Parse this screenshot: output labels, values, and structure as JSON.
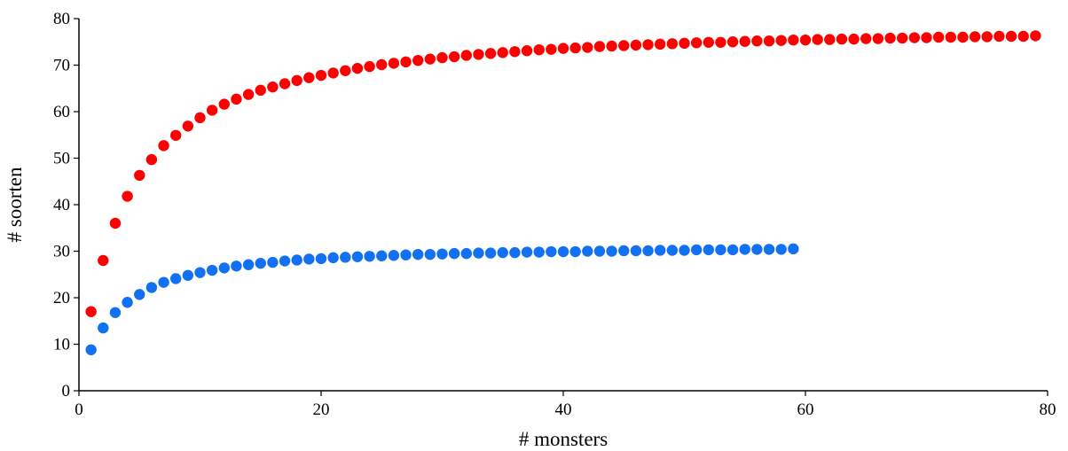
{
  "chart_data": {
    "type": "scatter",
    "title": "",
    "xlabel": "# monsters",
    "ylabel": "# soorten",
    "xlim": [
      0,
      80
    ],
    "ylim": [
      0,
      80
    ],
    "xticks": [
      0,
      20,
      40,
      60,
      80
    ],
    "yticks": [
      0,
      10,
      20,
      30,
      40,
      50,
      60,
      70,
      80
    ],
    "grid": false,
    "legend": "none",
    "series": [
      {
        "color": "#ff0000",
        "x": [
          1,
          2,
          3,
          4,
          5,
          6,
          7,
          8,
          9,
          10,
          11,
          12,
          13,
          14,
          15,
          16,
          17,
          18,
          19,
          20,
          21,
          22,
          23,
          24,
          25,
          26,
          27,
          28,
          29,
          30,
          31,
          32,
          33,
          34,
          35,
          36,
          37,
          38,
          39,
          40,
          41,
          42,
          43,
          44,
          45,
          46,
          47,
          48,
          49,
          50,
          51,
          52,
          53,
          54,
          55,
          56,
          57,
          58,
          59,
          60,
          61,
          62,
          63,
          64,
          65,
          66,
          67,
          68,
          69,
          70,
          71,
          72,
          73,
          74,
          75,
          76,
          77,
          78,
          79
        ],
        "y": [
          17,
          28,
          36,
          41.8,
          46.3,
          49.7,
          52.7,
          54.9,
          56.9,
          58.7,
          60.3,
          61.6,
          62.7,
          63.7,
          64.6,
          65.3,
          66.0,
          66.7,
          67.3,
          67.8,
          68.3,
          68.8,
          69.3,
          69.7,
          70.1,
          70.4,
          70.7,
          71.0,
          71.3,
          71.6,
          71.8,
          72.1,
          72.3,
          72.5,
          72.7,
          72.9,
          73.1,
          73.3,
          73.4,
          73.6,
          73.7,
          73.8,
          74.0,
          74.1,
          74.2,
          74.3,
          74.4,
          74.5,
          74.6,
          74.7,
          74.8,
          74.9,
          74.9,
          75.0,
          75.1,
          75.2,
          75.2,
          75.3,
          75.4,
          75.4,
          75.5,
          75.5,
          75.6,
          75.6,
          75.7,
          75.7,
          75.8,
          75.8,
          75.9,
          75.9,
          76.0,
          76.0,
          76.0,
          76.1,
          76.1,
          76.2,
          76.2,
          76.2,
          76.3
        ]
      },
      {
        "color": "#1270f2",
        "x": [
          1,
          2,
          3,
          4,
          5,
          6,
          7,
          8,
          9,
          10,
          11,
          12,
          13,
          14,
          15,
          16,
          17,
          18,
          19,
          20,
          21,
          22,
          23,
          24,
          25,
          26,
          27,
          28,
          29,
          30,
          31,
          32,
          33,
          34,
          35,
          36,
          37,
          38,
          39,
          40,
          41,
          42,
          43,
          44,
          45,
          46,
          47,
          48,
          49,
          50,
          51,
          52,
          53,
          54,
          55,
          56,
          57,
          58,
          59
        ],
        "y": [
          8.8,
          13.5,
          16.8,
          19.0,
          20.7,
          22.2,
          23.3,
          24.1,
          24.8,
          25.4,
          25.9,
          26.4,
          26.8,
          27.1,
          27.4,
          27.6,
          27.9,
          28.1,
          28.3,
          28.4,
          28.6,
          28.7,
          28.8,
          28.9,
          29.0,
          29.1,
          29.2,
          29.3,
          29.3,
          29.4,
          29.5,
          29.5,
          29.6,
          29.6,
          29.7,
          29.7,
          29.8,
          29.8,
          29.9,
          29.9,
          29.9,
          30.0,
          30.0,
          30.0,
          30.1,
          30.1,
          30.1,
          30.2,
          30.2,
          30.2,
          30.3,
          30.3,
          30.3,
          30.3,
          30.4,
          30.4,
          30.4,
          30.4,
          30.5
        ]
      }
    ]
  }
}
